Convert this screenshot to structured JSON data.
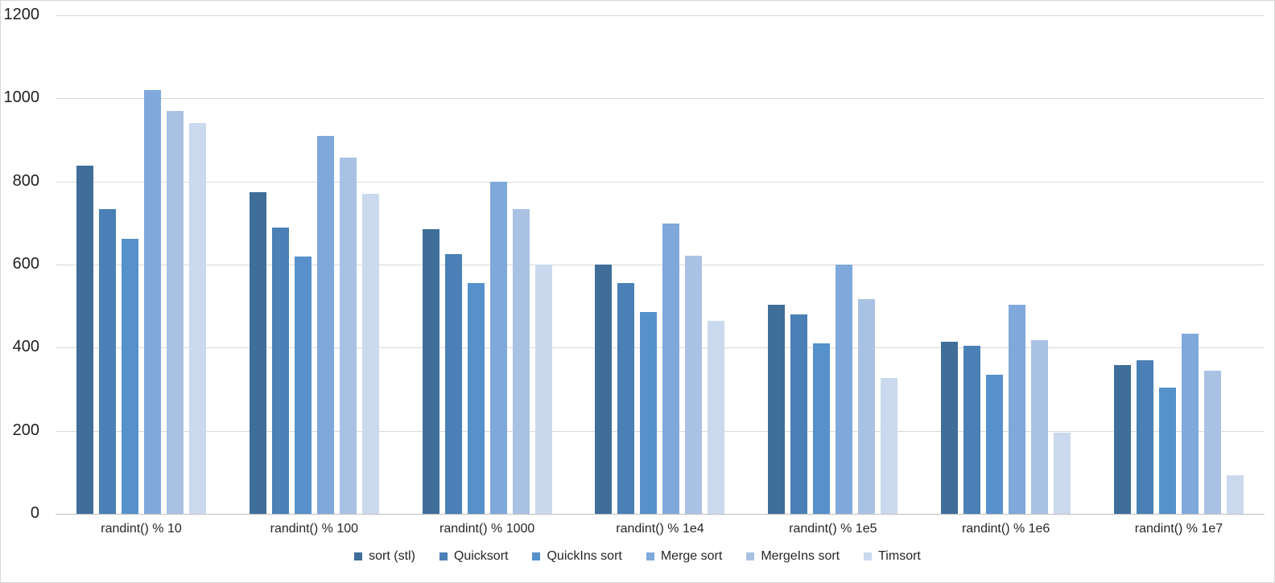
{
  "chart_data": {
    "type": "bar",
    "title": "",
    "categories": [
      "randint() % 10",
      "randint() % 100",
      "randint() % 1000",
      "randint() % 1e4",
      "randint() % 1e5",
      "randint() % 1e6",
      "randint() % 1e7"
    ],
    "series": [
      {
        "name": "sort (stl)",
        "color": "#3f6e99",
        "values": [
          838,
          775,
          685,
          600,
          503,
          414,
          358
        ]
      },
      {
        "name": "Quicksort",
        "color": "#4a80b5",
        "values": [
          734,
          690,
          626,
          555,
          480,
          405,
          370
        ]
      },
      {
        "name": "QuickIns sort",
        "color": "#5691cb",
        "values": [
          662,
          620,
          556,
          486,
          410,
          335,
          303
        ]
      },
      {
        "name": "Merge sort",
        "color": "#7fa8db",
        "values": [
          1020,
          910,
          800,
          698,
          600,
          503,
          433
        ]
      },
      {
        "name": "MergeIns sort",
        "color": "#a9c2e4",
        "values": [
          970,
          858,
          733,
          622,
          517,
          419,
          345
        ]
      },
      {
        "name": "Timsort",
        "color": "#cbd9ee",
        "values": [
          941,
          770,
          600,
          464,
          328,
          196,
          92
        ]
      }
    ],
    "y_axis": {
      "min": 0,
      "max": 1200,
      "step": 200,
      "ticks": [
        0,
        200,
        400,
        600,
        800,
        1000,
        1200
      ]
    },
    "xlabel": "",
    "ylabel": "",
    "grid": true,
    "legend_position": "bottom"
  },
  "colors": {
    "background": "#ffffff",
    "border": "#d7d7d7",
    "gridline": "#d9d9d9",
    "axis_line": "#bfbfbf",
    "tick_text": "#1f1f1f",
    "label_text": "#262626"
  }
}
